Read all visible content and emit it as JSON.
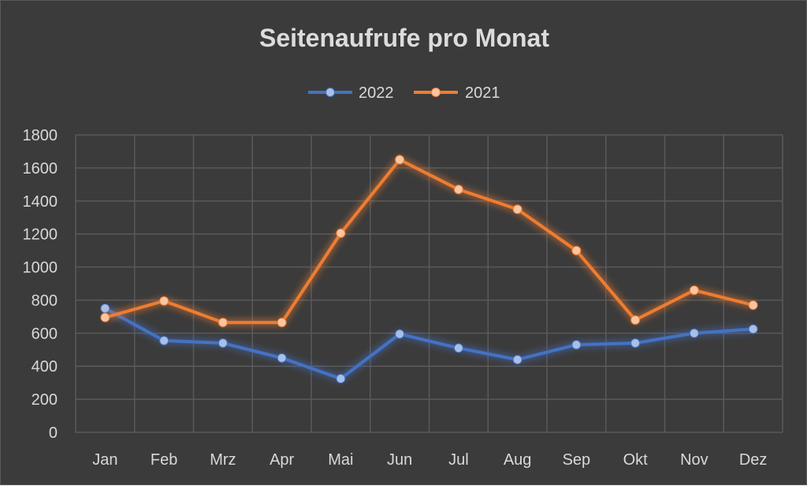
{
  "chart_data": {
    "type": "line",
    "title": "Seitenaufrufe pro Monat",
    "xlabel": "",
    "ylabel": "",
    "categories": [
      "Jan",
      "Feb",
      "Mrz",
      "Apr",
      "Mai",
      "Jun",
      "Jul",
      "Aug",
      "Sep",
      "Okt",
      "Nov",
      "Dez"
    ],
    "ylim": [
      0,
      1800
    ],
    "yticks": [
      "0",
      "200",
      "400",
      "600",
      "800",
      "1000",
      "1200",
      "1400",
      "1600",
      "1800"
    ],
    "grid": true,
    "legend_position": "top-center",
    "series": [
      {
        "name": "2022",
        "color": "#4472c4",
        "marker_color": "#a9bfe6",
        "values": [
          750,
          555,
          540,
          450,
          325,
          595,
          510,
          440,
          530,
          540,
          600,
          625
        ]
      },
      {
        "name": "2021",
        "color": "#ed7d31",
        "marker_color": "#f8c6a2",
        "values": [
          695,
          795,
          665,
          665,
          1205,
          1650,
          1470,
          1350,
          1100,
          680,
          860,
          770
        ]
      }
    ]
  }
}
